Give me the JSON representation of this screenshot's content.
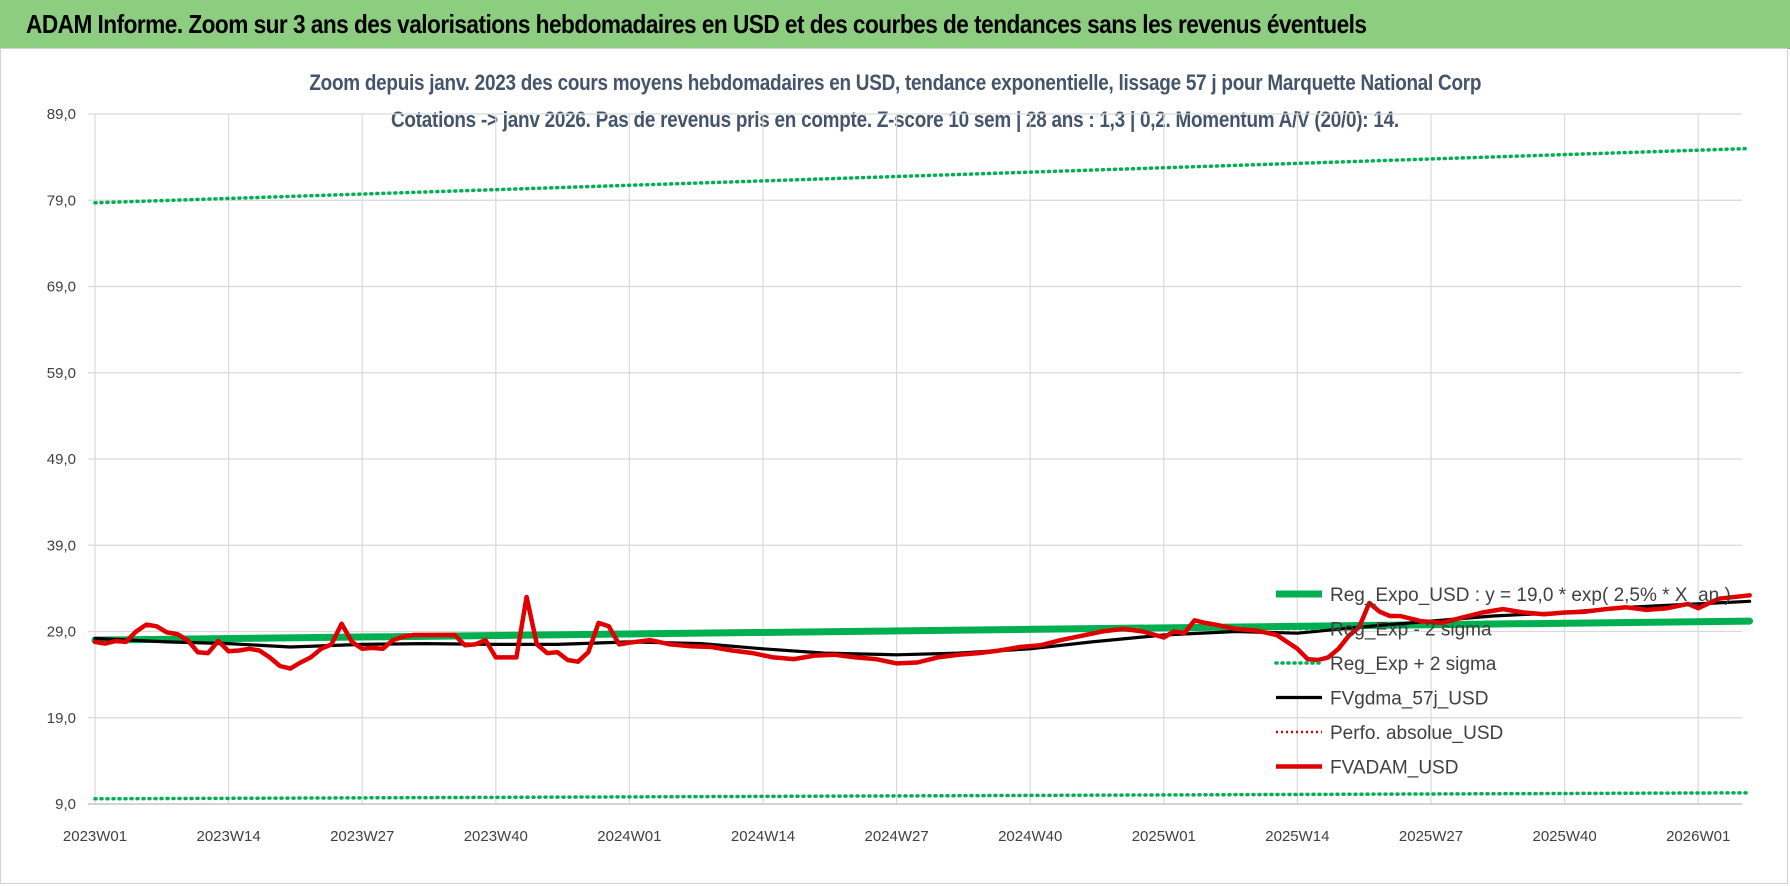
{
  "banner": {
    "title": "ADAM Informe. Zoom sur 3 ans des valorisations hebdomadaires en USD et des courbes de tendances sans les revenus éventuels"
  },
  "chart_data": {
    "type": "line",
    "title_line1": "Zoom depuis janv. 2023 des cours moyens hebdomadaires en USD, tendance exponentielle, lissage 57 j pour Marquette National Corp",
    "title_line2": "Cotations -> janv 2026. Pas de revenus pris en compte. Z-score 10 sem | 28 ans : 1,3 | 0,2. Momentum A/V (20/0): 14.",
    "ylim": [
      9,
      89
    ],
    "yticks": [
      "9,0",
      "19,0",
      "29,0",
      "39,0",
      "49,0",
      "59,0",
      "69,0",
      "79,0",
      "89,0"
    ],
    "xticks": [
      "2023W01",
      "2023W14",
      "2023W27",
      "2023W40",
      "2024W01",
      "2024W14",
      "2024W27",
      "2024W40",
      "2025W01",
      "2025W14",
      "2025W27",
      "2025W40",
      "2026W01"
    ],
    "grid": true,
    "legend_position": "right",
    "colors": {
      "reg_expo": "#00b050",
      "sigma": "#00b050",
      "fvgdma": "#000000",
      "perfo": "#e00000",
      "fvadam": "#e00000"
    },
    "series": [
      {
        "name": "Reg_Expo_USD : y = 19,0 * exp( 2,5% * X_an )",
        "x": [
          "2023W01",
          "2026W06"
        ],
        "values": [
          28.0,
          30.2
        ]
      },
      {
        "name": "Reg_Exp - 2 sigma",
        "x": [
          "2023W01",
          "2026W06"
        ],
        "values": [
          9.6,
          10.3
        ]
      },
      {
        "name": "Reg_Exp + 2 sigma",
        "x": [
          "2023W01",
          "2026W06"
        ],
        "values": [
          78.7,
          85.0
        ]
      },
      {
        "name": "FVgdma_57j_USD",
        "x": [
          "2023W01",
          "2023W08",
          "2023W14",
          "2023W20",
          "2023W27",
          "2023W33",
          "2023W40",
          "2023W46",
          "2024W01",
          "2024W08",
          "2024W14",
          "2024W20",
          "2024W27",
          "2024W33",
          "2024W40",
          "2024W46",
          "2025W01",
          "2025W08",
          "2025W14",
          "2025W20",
          "2025W27",
          "2025W33",
          "2025W40",
          "2025W46",
          "2026W01",
          "2026W06"
        ],
        "values": [
          28.2,
          27.8,
          27.6,
          27.2,
          27.5,
          27.6,
          27.5,
          27.5,
          27.8,
          27.6,
          27.0,
          26.5,
          26.3,
          26.5,
          27.0,
          27.8,
          28.6,
          29.0,
          28.8,
          29.5,
          30.2,
          30.8,
          31.2,
          31.8,
          32.2,
          32.5
        ]
      },
      {
        "name": "Perfo. absolue_USD",
        "x": [],
        "values": []
      },
      {
        "name": "FVADAM_USD",
        "x": [
          "2023W01",
          "2023W02",
          "2023W03",
          "2023W04",
          "2023W05",
          "2023W06",
          "2023W07",
          "2023W08",
          "2023W09",
          "2023W10",
          "2023W11",
          "2023W12",
          "2023W13",
          "2023W14",
          "2023W15",
          "2023W16",
          "2023W17",
          "2023W18",
          "2023W19",
          "2023W20",
          "2023W21",
          "2023W22",
          "2023W23",
          "2023W24",
          "2023W25",
          "2023W26",
          "2023W27",
          "2023W28",
          "2023W29",
          "2023W30",
          "2023W31",
          "2023W32",
          "2023W33",
          "2023W34",
          "2023W35",
          "2023W36",
          "2023W37",
          "2023W38",
          "2023W39",
          "2023W40",
          "2023W41",
          "2023W42",
          "2023W43",
          "2023W44",
          "2023W45",
          "2023W46",
          "2023W47",
          "2023W48",
          "2023W49",
          "2023W50",
          "2023W51",
          "2023W52",
          "2024W01",
          "2024W03",
          "2024W05",
          "2024W07",
          "2024W09",
          "2024W11",
          "2024W13",
          "2024W15",
          "2024W17",
          "2024W19",
          "2024W21",
          "2024W23",
          "2024W25",
          "2024W27",
          "2024W29",
          "2024W31",
          "2024W33",
          "2024W35",
          "2024W37",
          "2024W39",
          "2024W41",
          "2024W43",
          "2024W45",
          "2024W47",
          "2024W49",
          "2024W51",
          "2025W01",
          "2025W02",
          "2025W03",
          "2025W04",
          "2025W05",
          "2025W06",
          "2025W08",
          "2025W10",
          "2025W12",
          "2025W14",
          "2025W15",
          "2025W16",
          "2025W17",
          "2025W18",
          "2025W19",
          "2025W20",
          "2025W21",
          "2025W22",
          "2025W23",
          "2025W24",
          "2025W26",
          "2025W28",
          "2025W30",
          "2025W32",
          "2025W34",
          "2025W36",
          "2025W38",
          "2025W40",
          "2025W42",
          "2025W44",
          "2025W46",
          "2025W48",
          "2025W50",
          "2025W52",
          "2026W01",
          "2026W03",
          "2026W06"
        ],
        "values": [
          27.8,
          27.6,
          27.9,
          27.8,
          29.0,
          29.8,
          29.6,
          28.9,
          28.7,
          28.0,
          26.6,
          26.5,
          27.9,
          26.7,
          26.8,
          27.0,
          26.8,
          26.0,
          25.0,
          24.7,
          25.4,
          26.0,
          27.0,
          27.5,
          29.9,
          27.8,
          27.0,
          27.1,
          27.0,
          28.0,
          28.4,
          28.6,
          28.6,
          28.6,
          28.6,
          28.6,
          27.4,
          27.5,
          28.0,
          26.0,
          26.0,
          26.0,
          33.0,
          27.5,
          26.5,
          26.6,
          25.7,
          25.5,
          26.6,
          30.0,
          29.6,
          27.5,
          27.7,
          28.0,
          27.5,
          27.3,
          27.2,
          26.8,
          26.5,
          26.0,
          25.8,
          26.2,
          26.3,
          26.0,
          25.8,
          25.3,
          25.4,
          26.0,
          26.3,
          26.5,
          26.8,
          27.2,
          27.4,
          28.0,
          28.5,
          29.0,
          29.3,
          29.0,
          28.3,
          29.0,
          28.8,
          30.3,
          30.0,
          29.8,
          29.3,
          29.1,
          28.6,
          27.0,
          25.8,
          25.7,
          26.0,
          27.0,
          28.5,
          29.5,
          32.3,
          31.3,
          30.8,
          30.8,
          30.2,
          30.0,
          30.6,
          31.2,
          31.6,
          31.2,
          31.0,
          31.2,
          31.3,
          31.6,
          31.8,
          31.5,
          31.7,
          32.2,
          31.7,
          32.8,
          33.2
        ]
      }
    ]
  }
}
